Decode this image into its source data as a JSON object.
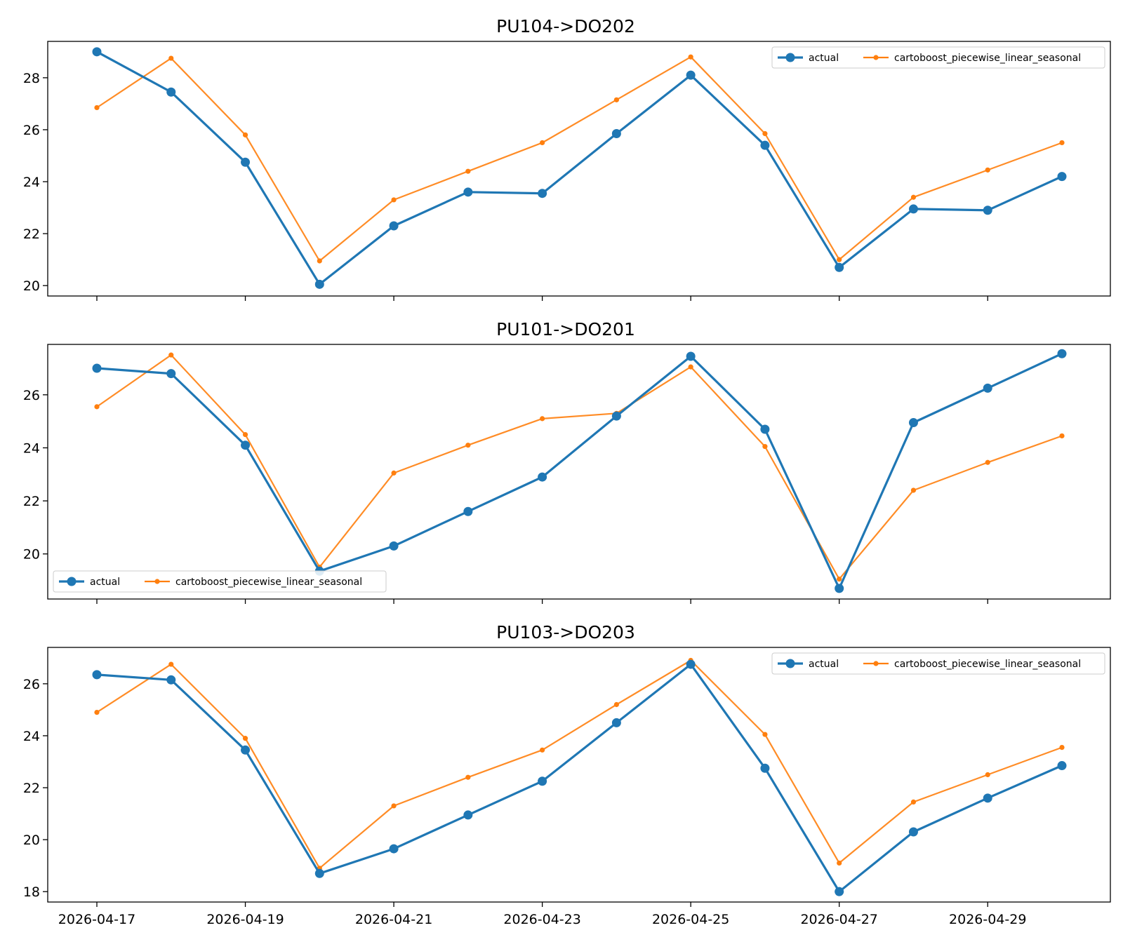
{
  "colors": {
    "actual": "#1f77b4",
    "forecast": "#ff7f0e",
    "axes": "#000000"
  },
  "chart_data": [
    {
      "type": "line",
      "title": "PU104->DO202",
      "x": [
        "2026-04-17",
        "2026-04-18",
        "2026-04-19",
        "2026-04-20",
        "2026-04-21",
        "2026-04-22",
        "2026-04-23",
        "2026-04-24",
        "2026-04-25",
        "2026-04-26",
        "2026-04-27",
        "2026-04-28",
        "2026-04-29",
        "2026-04-30"
      ],
      "ylim": [
        19.6,
        29.4
      ],
      "yticks": [
        20,
        22,
        24,
        26,
        28
      ],
      "legend": "top-right",
      "series": [
        {
          "name": "actual",
          "values": [
            29.0,
            27.45,
            24.75,
            20.05,
            22.3,
            23.6,
            23.55,
            25.85,
            28.1,
            25.4,
            20.7,
            22.95,
            22.9,
            24.2
          ]
        },
        {
          "name": "cartoboost_piecewise_linear_seasonal",
          "values": [
            26.85,
            28.75,
            25.8,
            20.95,
            23.3,
            24.4,
            25.5,
            27.15,
            28.8,
            25.85,
            21.0,
            23.4,
            24.45,
            25.5
          ]
        }
      ]
    },
    {
      "type": "line",
      "title": "PU101->DO201",
      "x": [
        "2026-04-17",
        "2026-04-18",
        "2026-04-19",
        "2026-04-20",
        "2026-04-21",
        "2026-04-22",
        "2026-04-23",
        "2026-04-24",
        "2026-04-25",
        "2026-04-26",
        "2026-04-27",
        "2026-04-28",
        "2026-04-29",
        "2026-04-30"
      ],
      "ylim": [
        18.3,
        27.9
      ],
      "yticks": [
        20,
        22,
        24,
        26
      ],
      "legend": "bottom-left",
      "series": [
        {
          "name": "actual",
          "values": [
            27.0,
            26.8,
            24.1,
            19.35,
            20.3,
            21.6,
            22.9,
            25.2,
            27.45,
            24.7,
            18.7,
            24.95,
            26.25,
            27.55
          ]
        },
        {
          "name": "cartoboost_piecewise_linear_seasonal",
          "values": [
            25.55,
            27.5,
            24.5,
            19.5,
            23.05,
            24.1,
            25.1,
            25.3,
            27.05,
            24.05,
            19.05,
            22.4,
            23.45,
            24.45
          ]
        }
      ]
    },
    {
      "type": "line",
      "title": "PU103->DO203",
      "x": [
        "2026-04-17",
        "2026-04-18",
        "2026-04-19",
        "2026-04-20",
        "2026-04-21",
        "2026-04-22",
        "2026-04-23",
        "2026-04-24",
        "2026-04-25",
        "2026-04-26",
        "2026-04-27",
        "2026-04-28",
        "2026-04-29",
        "2026-04-30"
      ],
      "ylim": [
        17.6,
        27.4
      ],
      "yticks": [
        18,
        20,
        22,
        24,
        26
      ],
      "legend": "top-right",
      "series": [
        {
          "name": "actual",
          "values": [
            26.35,
            26.15,
            23.45,
            18.7,
            19.65,
            20.95,
            22.25,
            24.5,
            26.75,
            22.75,
            18.0,
            20.3,
            21.6,
            22.85
          ]
        },
        {
          "name": "cartoboost_piecewise_linear_seasonal",
          "values": [
            24.9,
            26.75,
            23.9,
            18.9,
            21.3,
            22.4,
            23.45,
            25.2,
            26.9,
            24.05,
            19.1,
            21.45,
            22.5,
            23.55
          ]
        }
      ]
    }
  ],
  "xtick_labels": [
    "2026-04-17",
    "2026-04-19",
    "2026-04-21",
    "2026-04-23",
    "2026-04-25",
    "2026-04-27",
    "2026-04-29"
  ]
}
